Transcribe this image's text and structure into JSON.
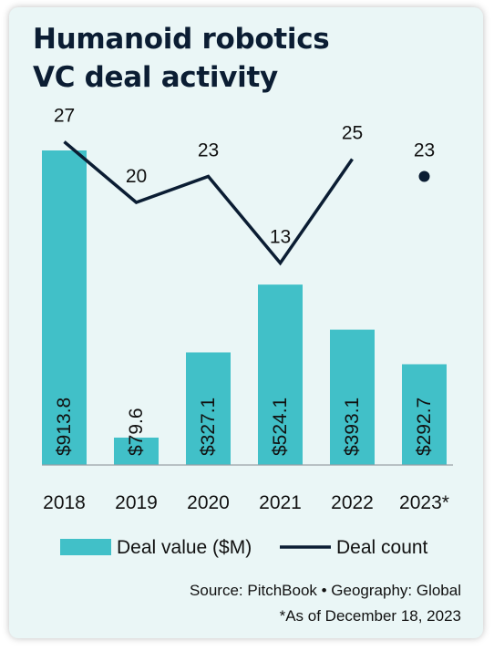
{
  "title_line1": "Humanoid robotics",
  "title_line2": "VC deal activity",
  "source": "Source: PitchBook • Geography: Global",
  "note": "*As of December 18, 2023",
  "colors": {
    "bar": "#41c0c8",
    "line": "#0b1d33",
    "text": "#111111",
    "background": "#eaf6f6"
  },
  "chart_data": {
    "type": "bar",
    "categories": [
      "2018",
      "2019",
      "2020",
      "2021",
      "2022",
      "2023*"
    ],
    "series": [
      {
        "name": "Deal value ($M)",
        "type": "bar",
        "values": [
          913.8,
          79.6,
          327.1,
          524.1,
          393.1,
          292.7
        ],
        "labels": [
          "$913.8",
          "$79.6",
          "$327.1",
          "$524.1",
          "$393.1",
          "$292.7"
        ]
      },
      {
        "name": "Deal count",
        "type": "line",
        "values": [
          27,
          20,
          23,
          13,
          25,
          23
        ],
        "labels": [
          "27",
          "20",
          "23",
          "13",
          "25",
          "23"
        ]
      }
    ],
    "line_connected_through": 5,
    "legend": "bottom",
    "grid": false
  }
}
